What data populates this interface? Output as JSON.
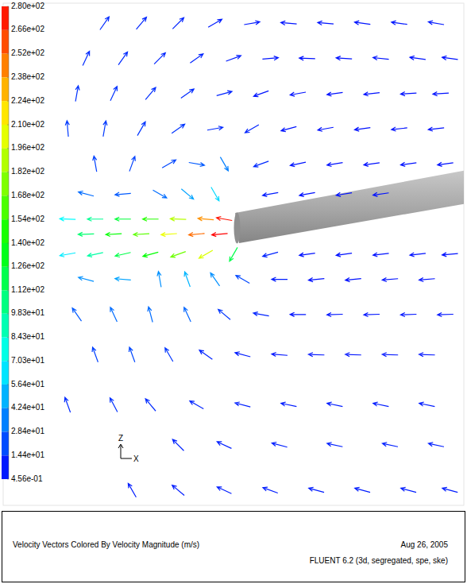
{
  "chart_data": {
    "type": "quiver",
    "title": "Velocity Vectors Colored By Velocity Magnitude (m/s)",
    "subtitle": "FLUENT 6.2 (3d, segregated, spe, ske)",
    "date": "Aug 26, 2005",
    "x_label": "X",
    "y_label": "Z",
    "xlim": [
      0,
      100
    ],
    "ylim": [
      0,
      100
    ],
    "tick_labels": false,
    "colorbar": {
      "lim": [
        0.456,
        280
      ],
      "ticks": [
        {
          "value": 280,
          "label": "2.80e+02"
        },
        {
          "value": 266,
          "label": "2.66e+02"
        },
        {
          "value": 252,
          "label": "2.52e+02"
        },
        {
          "value": 238,
          "label": "2.38e+02"
        },
        {
          "value": 224,
          "label": "2.24e+02"
        },
        {
          "value": 210,
          "label": "2.10e+02"
        },
        {
          "value": 196,
          "label": "1.96e+02"
        },
        {
          "value": 182,
          "label": "1.82e+02"
        },
        {
          "value": 168,
          "label": "1.68e+02"
        },
        {
          "value": 154,
          "label": "1.54e+02"
        },
        {
          "value": 140,
          "label": "1.40e+02"
        },
        {
          "value": 126,
          "label": "1.26e+02"
        },
        {
          "value": 112,
          "label": "1.12e+02"
        },
        {
          "value": 98.3,
          "label": "9.83e+01"
        },
        {
          "value": 84.3,
          "label": "8.43e+01"
        },
        {
          "value": 70.3,
          "label": "7.03e+01"
        },
        {
          "value": 56.4,
          "label": "5.64e+01"
        },
        {
          "value": 42.4,
          "label": "4.24e+01"
        },
        {
          "value": 28.4,
          "label": "2.84e+01"
        },
        {
          "value": 14.4,
          "label": "1.44e+01"
        },
        {
          "value": 0.456,
          "label": "4.56e-01"
        }
      ]
    },
    "vectors": [
      {
        "x": 22,
        "y": 96,
        "angle": 55,
        "value": 12
      },
      {
        "x": 30,
        "y": 96,
        "angle": 50,
        "value": 11
      },
      {
        "x": 38,
        "y": 96,
        "angle": 45,
        "value": 10
      },
      {
        "x": 46,
        "y": 96,
        "angle": 30,
        "value": 8
      },
      {
        "x": 54,
        "y": 96,
        "angle": 10,
        "value": 7
      },
      {
        "x": 62,
        "y": 96,
        "angle": 175,
        "value": 6
      },
      {
        "x": 70,
        "y": 96,
        "angle": 175,
        "value": 6
      },
      {
        "x": 78,
        "y": 96,
        "angle": 172,
        "value": 6
      },
      {
        "x": 86,
        "y": 96,
        "angle": 172,
        "value": 7
      },
      {
        "x": 94,
        "y": 96,
        "angle": 170,
        "value": 7
      },
      {
        "x": 18,
        "y": 89,
        "angle": 65,
        "value": 12
      },
      {
        "x": 26,
        "y": 89,
        "angle": 55,
        "value": 12
      },
      {
        "x": 34,
        "y": 89,
        "angle": 45,
        "value": 11
      },
      {
        "x": 42,
        "y": 89,
        "angle": 35,
        "value": 10
      },
      {
        "x": 50,
        "y": 89,
        "angle": 20,
        "value": 8
      },
      {
        "x": 58,
        "y": 89,
        "angle": 5,
        "value": 6
      },
      {
        "x": 66,
        "y": 89,
        "angle": 178,
        "value": 5
      },
      {
        "x": 74,
        "y": 89,
        "angle": 176,
        "value": 5
      },
      {
        "x": 82,
        "y": 89,
        "angle": 174,
        "value": 6
      },
      {
        "x": 90,
        "y": 89,
        "angle": 172,
        "value": 6
      },
      {
        "x": 97,
        "y": 89,
        "angle": 172,
        "value": 6
      },
      {
        "x": 16,
        "y": 82,
        "angle": 80,
        "value": 14
      },
      {
        "x": 24,
        "y": 82,
        "angle": 65,
        "value": 14
      },
      {
        "x": 32,
        "y": 82,
        "angle": 50,
        "value": 13
      },
      {
        "x": 40,
        "y": 82,
        "angle": 35,
        "value": 12
      },
      {
        "x": 48,
        "y": 82,
        "angle": 15,
        "value": 10
      },
      {
        "x": 56,
        "y": 82,
        "angle": 200,
        "value": 6
      },
      {
        "x": 64,
        "y": 82,
        "angle": 190,
        "value": 5
      },
      {
        "x": 72,
        "y": 82,
        "angle": 188,
        "value": 5
      },
      {
        "x": 80,
        "y": 82,
        "angle": 186,
        "value": 5
      },
      {
        "x": 88,
        "y": 82,
        "angle": 184,
        "value": 5
      },
      {
        "x": 95,
        "y": 82,
        "angle": 184,
        "value": 5
      },
      {
        "x": 14,
        "y": 75,
        "angle": 95,
        "value": 16
      },
      {
        "x": 22,
        "y": 75,
        "angle": 80,
        "value": 16
      },
      {
        "x": 30,
        "y": 75,
        "angle": 60,
        "value": 15
      },
      {
        "x": 38,
        "y": 75,
        "angle": 35,
        "value": 15
      },
      {
        "x": 46,
        "y": 75,
        "angle": 10,
        "value": 12
      },
      {
        "x": 54,
        "y": 75,
        "angle": 210,
        "value": 10
      },
      {
        "x": 62,
        "y": 75,
        "angle": 195,
        "value": 6
      },
      {
        "x": 70,
        "y": 75,
        "angle": 190,
        "value": 5
      },
      {
        "x": 78,
        "y": 75,
        "angle": 188,
        "value": 5
      },
      {
        "x": 86,
        "y": 75,
        "angle": 186,
        "value": 5
      },
      {
        "x": 94,
        "y": 75,
        "angle": 186,
        "value": 5
      },
      {
        "x": 20,
        "y": 68,
        "angle": 100,
        "value": 18
      },
      {
        "x": 28,
        "y": 68,
        "angle": 70,
        "value": 18
      },
      {
        "x": 36,
        "y": 68,
        "angle": 30,
        "value": 20
      },
      {
        "x": 42,
        "y": 68,
        "angle": 350,
        "value": 25
      },
      {
        "x": 48,
        "y": 68,
        "angle": 300,
        "value": 35
      },
      {
        "x": 56,
        "y": 68,
        "angle": 200,
        "value": 12
      },
      {
        "x": 64,
        "y": 68,
        "angle": 192,
        "value": 6
      },
      {
        "x": 72,
        "y": 68,
        "angle": 189,
        "value": 5
      },
      {
        "x": 80,
        "y": 68,
        "angle": 188,
        "value": 5
      },
      {
        "x": 88,
        "y": 68,
        "angle": 188,
        "value": 5
      },
      {
        "x": 96,
        "y": 68,
        "angle": 188,
        "value": 5
      },
      {
        "x": 18,
        "y": 62,
        "angle": 165,
        "value": 30
      },
      {
        "x": 26,
        "y": 62,
        "angle": 185,
        "value": 25
      },
      {
        "x": 34,
        "y": 62,
        "angle": 330,
        "value": 30
      },
      {
        "x": 40,
        "y": 62,
        "angle": 320,
        "value": 45
      },
      {
        "x": 46,
        "y": 62,
        "angle": 300,
        "value": 60
      },
      {
        "x": 58,
        "y": 62,
        "angle": 190,
        "value": 8
      },
      {
        "x": 66,
        "y": 62,
        "angle": 190,
        "value": 5
      },
      {
        "x": 74,
        "y": 62,
        "angle": 189,
        "value": 5
      },
      {
        "x": 82,
        "y": 62,
        "angle": 188,
        "value": 5
      },
      {
        "x": 14,
        "y": 57,
        "angle": 178,
        "value": 70
      },
      {
        "x": 20,
        "y": 57,
        "angle": 180,
        "value": 100
      },
      {
        "x": 26,
        "y": 57,
        "angle": 180,
        "value": 125
      },
      {
        "x": 32,
        "y": 57,
        "angle": 180,
        "value": 150
      },
      {
        "x": 38,
        "y": 57,
        "angle": 178,
        "value": 190
      },
      {
        "x": 44,
        "y": 57,
        "angle": 175,
        "value": 240
      },
      {
        "x": 48,
        "y": 57,
        "angle": 170,
        "value": 275
      },
      {
        "x": 18,
        "y": 54,
        "angle": 182,
        "value": 110
      },
      {
        "x": 24,
        "y": 54,
        "angle": 183,
        "value": 140
      },
      {
        "x": 30,
        "y": 54,
        "angle": 183,
        "value": 165
      },
      {
        "x": 36,
        "y": 54,
        "angle": 184,
        "value": 205
      },
      {
        "x": 42,
        "y": 54,
        "angle": 185,
        "value": 250
      },
      {
        "x": 47,
        "y": 54,
        "angle": 185,
        "value": 280
      },
      {
        "x": 14,
        "y": 50,
        "angle": 190,
        "value": 65
      },
      {
        "x": 20,
        "y": 50,
        "angle": 192,
        "value": 95
      },
      {
        "x": 26,
        "y": 50,
        "angle": 193,
        "value": 120
      },
      {
        "x": 32,
        "y": 50,
        "angle": 195,
        "value": 140
      },
      {
        "x": 38,
        "y": 50,
        "angle": 200,
        "value": 170
      },
      {
        "x": 44,
        "y": 50,
        "angle": 210,
        "value": 200
      },
      {
        "x": 50,
        "y": 50,
        "angle": 240,
        "value": 120
      },
      {
        "x": 58,
        "y": 50,
        "angle": 195,
        "value": 10
      },
      {
        "x": 66,
        "y": 50,
        "angle": 188,
        "value": 5
      },
      {
        "x": 74,
        "y": 50,
        "angle": 188,
        "value": 5
      },
      {
        "x": 82,
        "y": 50,
        "angle": 186,
        "value": 5
      },
      {
        "x": 90,
        "y": 50,
        "angle": 186,
        "value": 5
      },
      {
        "x": 97,
        "y": 50,
        "angle": 185,
        "value": 5
      },
      {
        "x": 18,
        "y": 45,
        "angle": 165,
        "value": 40
      },
      {
        "x": 26,
        "y": 45,
        "angle": 175,
        "value": 45
      },
      {
        "x": 34,
        "y": 45,
        "angle": 100,
        "value": 40
      },
      {
        "x": 40,
        "y": 45,
        "angle": 110,
        "value": 50
      },
      {
        "x": 46,
        "y": 45,
        "angle": 125,
        "value": 40
      },
      {
        "x": 52,
        "y": 45,
        "angle": 150,
        "value": 20
      },
      {
        "x": 60,
        "y": 45,
        "angle": 180,
        "value": 8
      },
      {
        "x": 68,
        "y": 45,
        "angle": 186,
        "value": 5
      },
      {
        "x": 76,
        "y": 45,
        "angle": 186,
        "value": 5
      },
      {
        "x": 84,
        "y": 45,
        "angle": 185,
        "value": 5
      },
      {
        "x": 92,
        "y": 45,
        "angle": 185,
        "value": 5
      },
      {
        "x": 16,
        "y": 38,
        "angle": 125,
        "value": 25
      },
      {
        "x": 24,
        "y": 38,
        "angle": 115,
        "value": 30
      },
      {
        "x": 32,
        "y": 38,
        "angle": 105,
        "value": 30
      },
      {
        "x": 40,
        "y": 38,
        "angle": 115,
        "value": 28
      },
      {
        "x": 48,
        "y": 38,
        "angle": 140,
        "value": 15
      },
      {
        "x": 56,
        "y": 38,
        "angle": 170,
        "value": 10
      },
      {
        "x": 64,
        "y": 38,
        "angle": 180,
        "value": 6
      },
      {
        "x": 72,
        "y": 38,
        "angle": 182,
        "value": 6
      },
      {
        "x": 80,
        "y": 38,
        "angle": 182,
        "value": 6
      },
      {
        "x": 88,
        "y": 38,
        "angle": 182,
        "value": 6
      },
      {
        "x": 96,
        "y": 38,
        "angle": 182,
        "value": 6
      },
      {
        "x": 20,
        "y": 30,
        "angle": 110,
        "value": 18
      },
      {
        "x": 28,
        "y": 30,
        "angle": 110,
        "value": 20
      },
      {
        "x": 36,
        "y": 30,
        "angle": 120,
        "value": 15
      },
      {
        "x": 44,
        "y": 30,
        "angle": 145,
        "value": 10
      },
      {
        "x": 52,
        "y": 30,
        "angle": 165,
        "value": 8
      },
      {
        "x": 60,
        "y": 30,
        "angle": 175,
        "value": 6
      },
      {
        "x": 68,
        "y": 30,
        "angle": 178,
        "value": 6
      },
      {
        "x": 76,
        "y": 30,
        "angle": 178,
        "value": 6
      },
      {
        "x": 84,
        "y": 30,
        "angle": 178,
        "value": 6
      },
      {
        "x": 92,
        "y": 30,
        "angle": 178,
        "value": 6
      },
      {
        "x": 14,
        "y": 20,
        "angle": 110,
        "value": 12
      },
      {
        "x": 24,
        "y": 20,
        "angle": 118,
        "value": 14
      },
      {
        "x": 32,
        "y": 20,
        "angle": 130,
        "value": 12
      },
      {
        "x": 42,
        "y": 20,
        "angle": 150,
        "value": 10
      },
      {
        "x": 52,
        "y": 20,
        "angle": 165,
        "value": 9
      },
      {
        "x": 62,
        "y": 20,
        "angle": 168,
        "value": 8
      },
      {
        "x": 72,
        "y": 20,
        "angle": 168,
        "value": 8
      },
      {
        "x": 82,
        "y": 20,
        "angle": 168,
        "value": 8
      },
      {
        "x": 92,
        "y": 20,
        "angle": 168,
        "value": 8
      },
      {
        "x": 38,
        "y": 12,
        "angle": 135,
        "value": 10
      },
      {
        "x": 48,
        "y": 12,
        "angle": 155,
        "value": 9
      },
      {
        "x": 60,
        "y": 12,
        "angle": 165,
        "value": 9
      },
      {
        "x": 72,
        "y": 12,
        "angle": 168,
        "value": 9
      },
      {
        "x": 84,
        "y": 12,
        "angle": 168,
        "value": 9
      },
      {
        "x": 94,
        "y": 12,
        "angle": 168,
        "value": 9
      },
      {
        "x": 28,
        "y": 3,
        "angle": 120,
        "value": 8
      },
      {
        "x": 38,
        "y": 3,
        "angle": 140,
        "value": 8
      },
      {
        "x": 48,
        "y": 3,
        "angle": 155,
        "value": 8
      },
      {
        "x": 58,
        "y": 3,
        "angle": 160,
        "value": 8
      },
      {
        "x": 68,
        "y": 3,
        "angle": 165,
        "value": 8
      },
      {
        "x": 78,
        "y": 3,
        "angle": 165,
        "value": 8
      },
      {
        "x": 88,
        "y": 3,
        "angle": 165,
        "value": 8
      },
      {
        "x": 97,
        "y": 3,
        "angle": 165,
        "value": 8
      }
    ]
  }
}
